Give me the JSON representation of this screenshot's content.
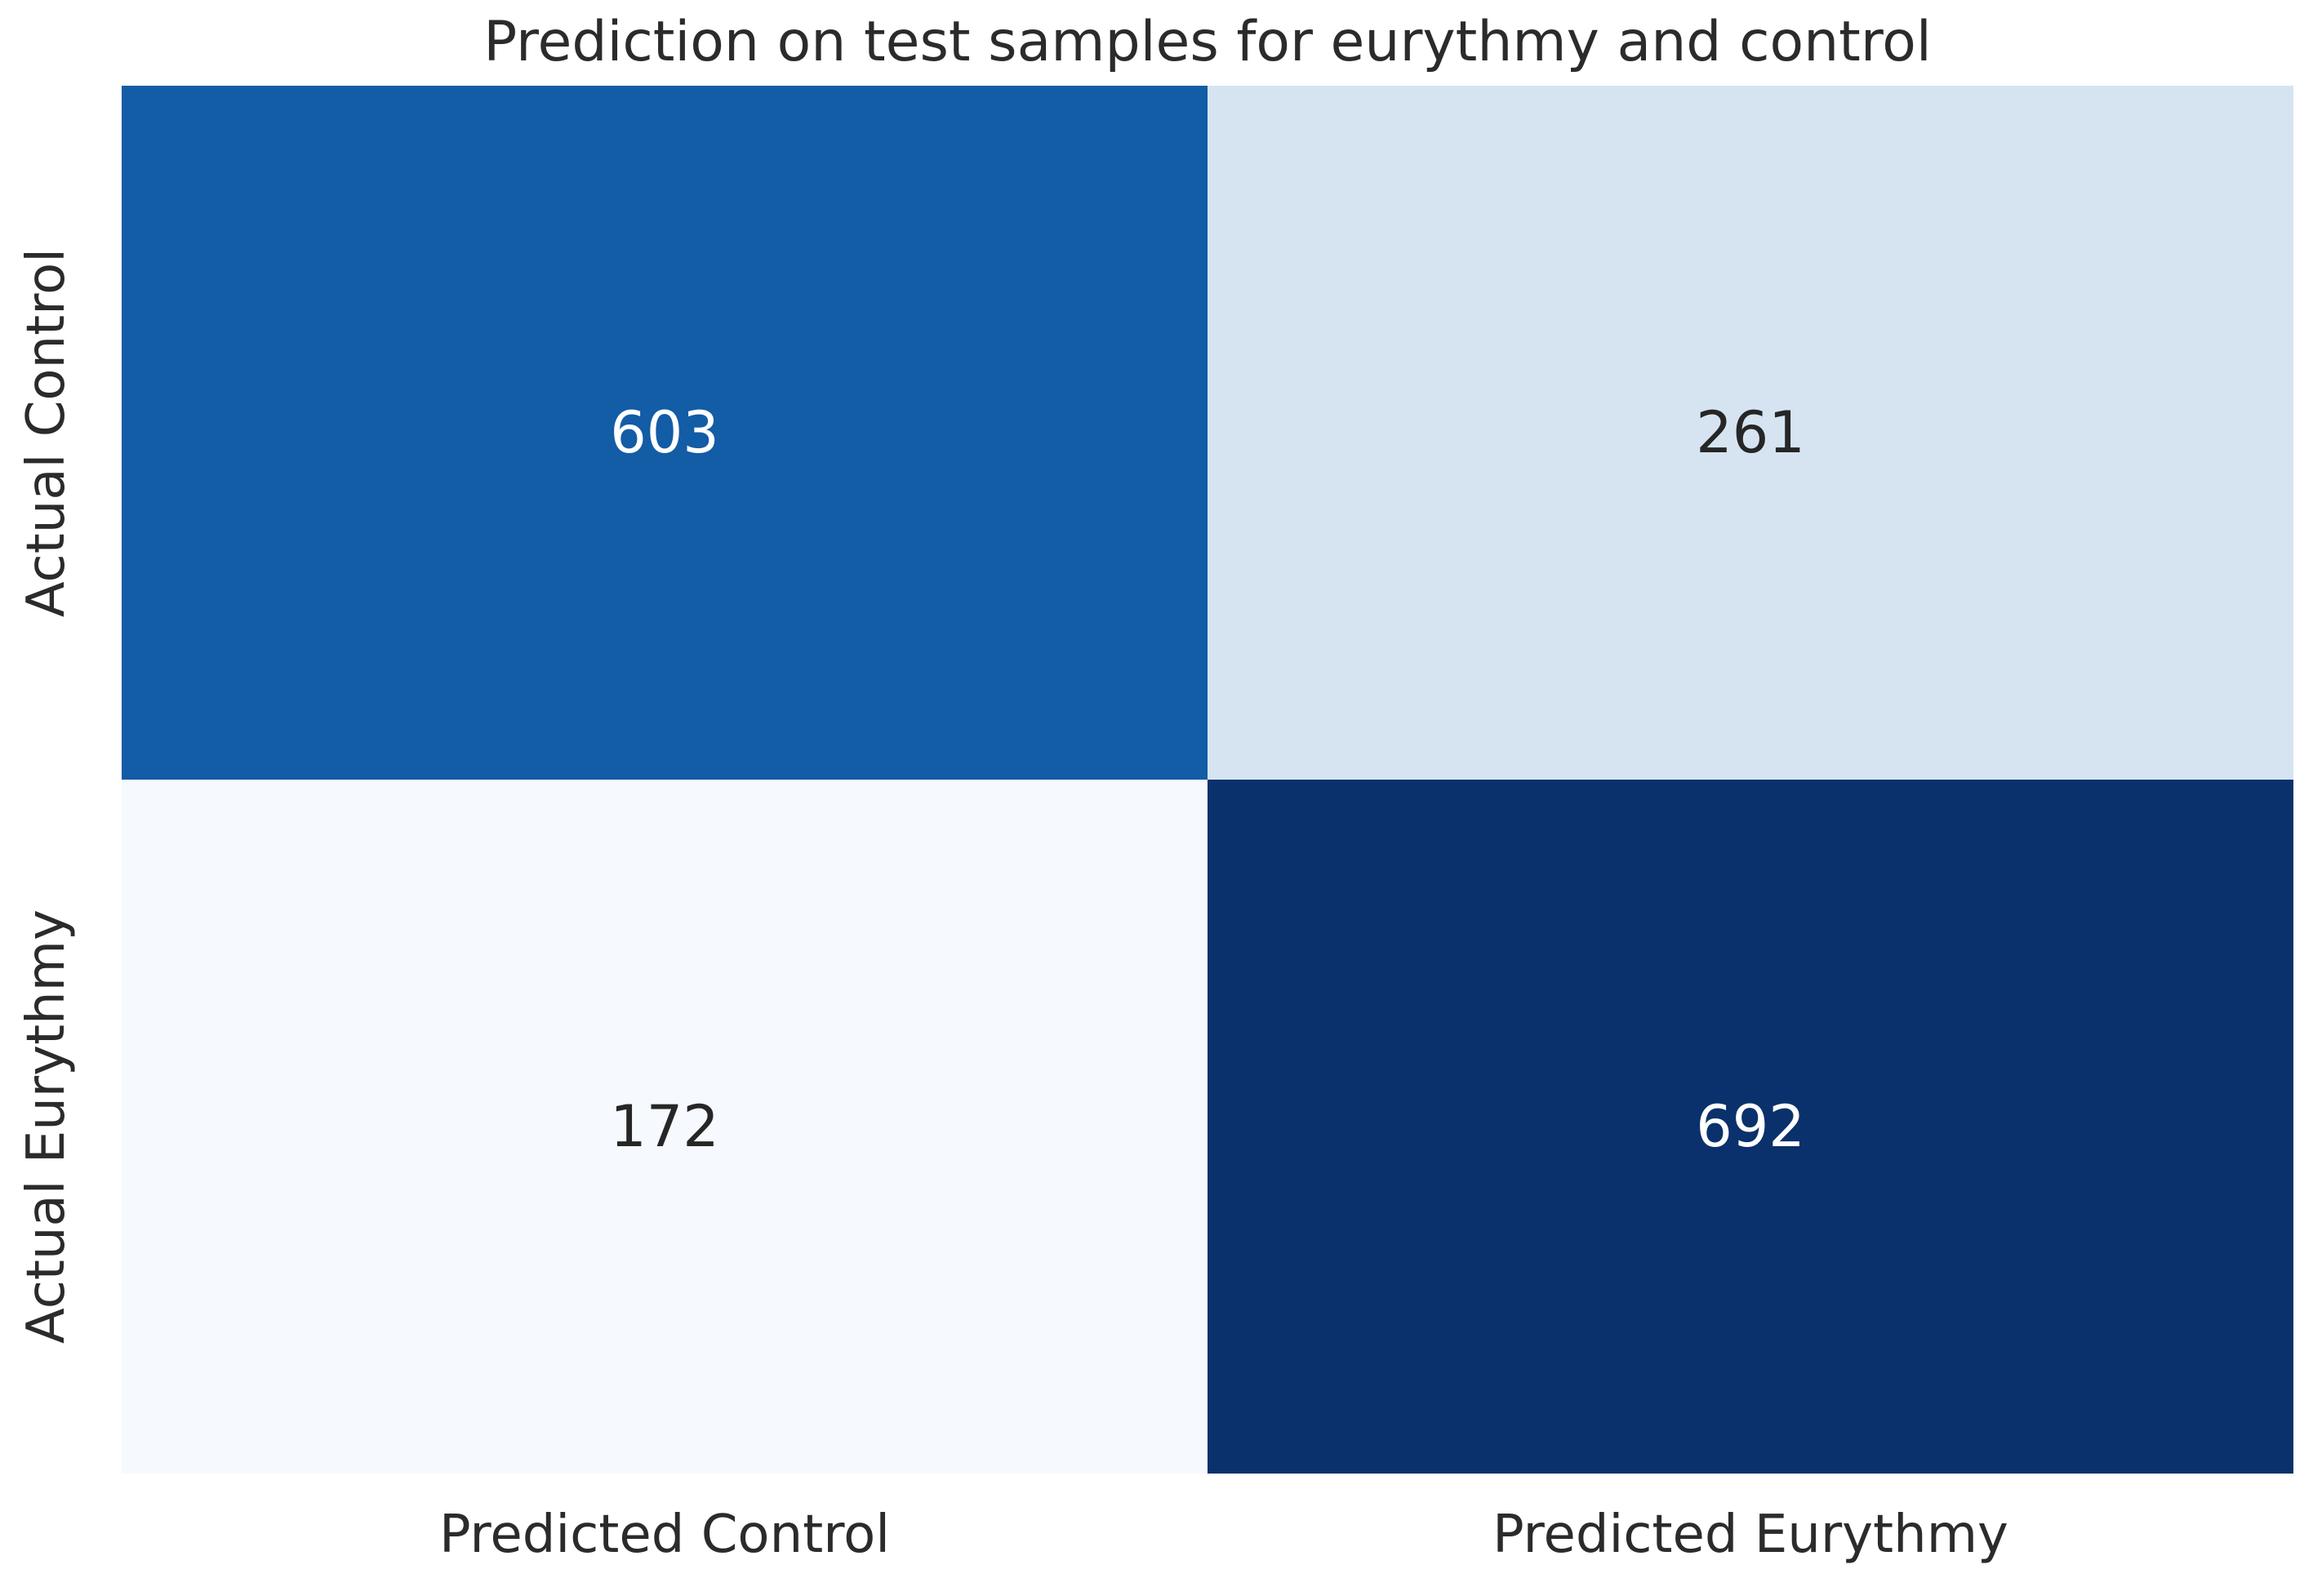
{
  "chart_data": {
    "type": "heatmap",
    "title": "Prediction on test samples for eurythmy and control",
    "x_tick_labels": [
      "Predicted Control",
      "Predicted Eurythmy"
    ],
    "y_tick_labels": [
      "Actual Control",
      "Actual Eurythmy"
    ],
    "values": [
      [
        603,
        261
      ],
      [
        172,
        692
      ]
    ],
    "value_min": 172,
    "value_max": 692,
    "colormap": "Blues",
    "cell_colors": [
      [
        "#135CA6",
        "#D6E4F2"
      ],
      [
        "#F6F9FE",
        "#0A316B"
      ]
    ],
    "cell_text_colors": [
      [
        "#FFFFFF",
        "#262626"
      ],
      [
        "#262626",
        "#FFFFFF"
      ]
    ],
    "background_color": "#FFFFFF",
    "text_color": "#2B2B2B",
    "legend": "none",
    "grid": false,
    "colorbar": false
  }
}
